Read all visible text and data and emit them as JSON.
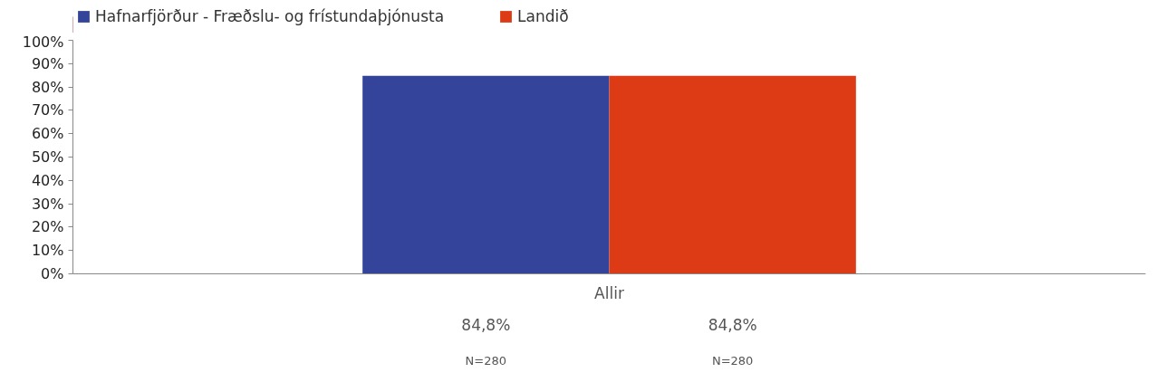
{
  "chart_data": {
    "type": "bar",
    "categories": [
      "Allir"
    ],
    "series": [
      {
        "name": "Hafnarfjörður - Fræðslu- og frístundaþjónusta",
        "color": "#33449a",
        "values": [
          84.8
        ],
        "value_labels": [
          "84,8%"
        ]
      },
      {
        "name": "Landið",
        "color": "#dd3a16",
        "values": [
          84.8
        ],
        "value_labels": [
          "84,8%"
        ]
      }
    ],
    "ylim": [
      0,
      100
    ],
    "yticks": [
      {
        "value": 0,
        "label": "0%"
      },
      {
        "value": 10,
        "label": "10%"
      },
      {
        "value": 20,
        "label": "20%"
      },
      {
        "value": 30,
        "label": "30%"
      },
      {
        "value": 40,
        "label": "40%"
      },
      {
        "value": 50,
        "label": "50%"
      },
      {
        "value": 60,
        "label": "60%"
      },
      {
        "value": 70,
        "label": "70%"
      },
      {
        "value": 80,
        "label": "80%"
      },
      {
        "value": 90,
        "label": "90%"
      },
      {
        "value": 100,
        "label": "100%"
      }
    ],
    "annotations": [
      "N=280",
      "N=280"
    ],
    "grid": false,
    "legend": "top left"
  }
}
